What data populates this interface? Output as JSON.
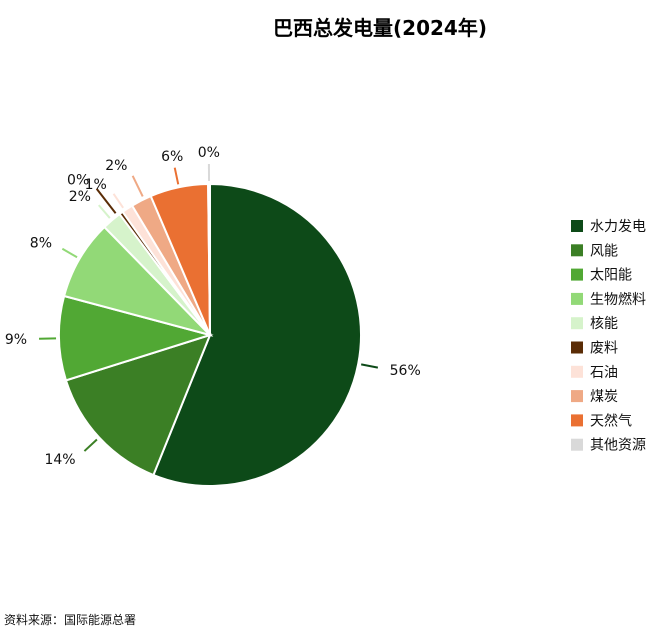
{
  "chart_data": {
    "type": "pie",
    "title": "巴西总发电量(2024年)",
    "slices": [
      {
        "label": "水力发电",
        "value": 56,
        "value_label": "56%",
        "color": "#0d4a18"
      },
      {
        "label": "风能",
        "value": 14,
        "value_label": "14%",
        "color": "#3b7f25"
      },
      {
        "label": "太阳能",
        "value": 9,
        "value_label": "9%",
        "color": "#51a834"
      },
      {
        "label": "生物燃料",
        "value": 8.5,
        "value_label": "8%",
        "color": "#92d977"
      },
      {
        "label": "核能",
        "value": 2.1,
        "value_label": "2%",
        "color": "#d6f3cb"
      },
      {
        "label": "废料",
        "value": 0.4,
        "value_label": "0%",
        "color": "#5a2c06"
      },
      {
        "label": "石油",
        "value": 1.2,
        "value_label": "1%",
        "color": "#fde2d8"
      },
      {
        "label": "煤炭",
        "value": 2.2,
        "value_label": "2%",
        "color": "#efa985"
      },
      {
        "label": "天然气",
        "value": 6.2,
        "value_label": "6%",
        "color": "#ea7032"
      },
      {
        "label": "其他资源",
        "value": 0.2,
        "value_label": "0%",
        "color": "#d9d9d9"
      }
    ],
    "legend_position": "right"
  },
  "source": "资料来源：国际能源总署"
}
